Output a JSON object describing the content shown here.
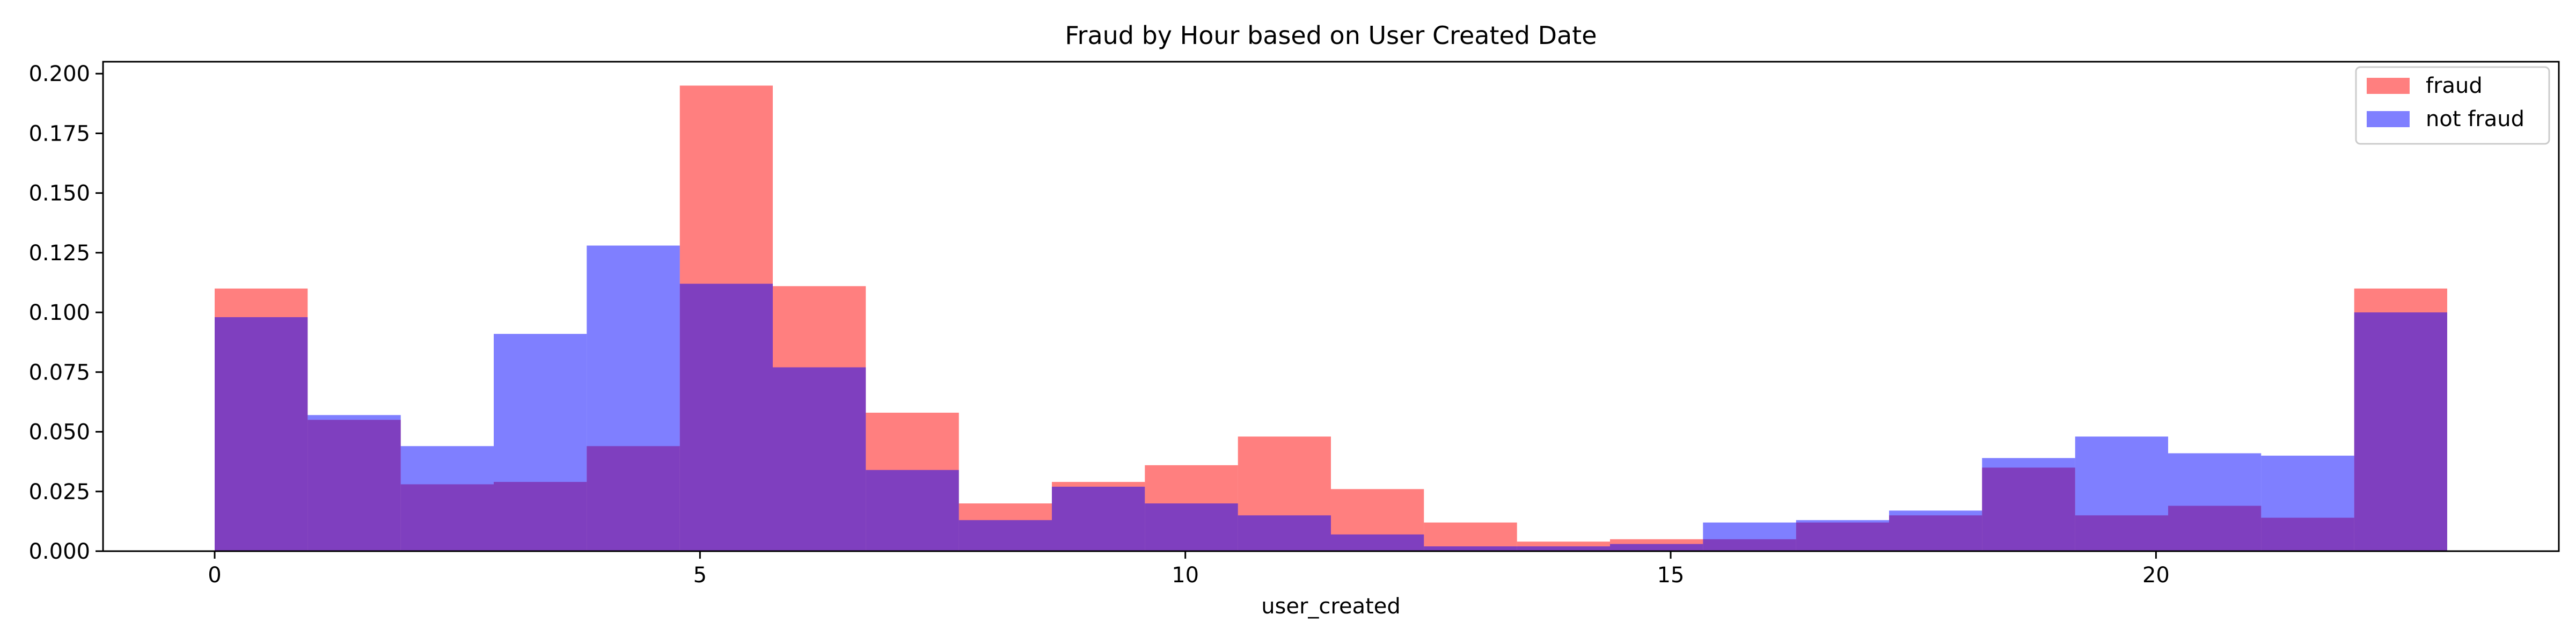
{
  "chart_data": {
    "type": "bar",
    "title": "Fraud by Hour based on User Created Date",
    "xlabel": "user_created",
    "ylabel": "",
    "xlim": [
      -1.15,
      24.15
    ],
    "ylim": [
      0,
      0.205
    ],
    "xticks": [
      0,
      5,
      10,
      15,
      20
    ],
    "xtick_labels": [
      "0",
      "5",
      "10",
      "15",
      "20"
    ],
    "yticks": [
      0,
      0.025,
      0.05,
      0.075,
      0.1,
      0.125,
      0.15,
      0.175,
      0.2
    ],
    "ytick_labels": [
      "0.000",
      "0.025",
      "0.050",
      "0.075",
      "0.100",
      "0.125",
      "0.150",
      "0.175",
      "0.200"
    ],
    "bin_edges": [
      0,
      0.958,
      1.917,
      2.875,
      3.833,
      4.792,
      5.75,
      6.708,
      7.667,
      8.625,
      9.583,
      10.542,
      11.5,
      12.458,
      13.417,
      14.375,
      15.333,
      16.292,
      17.25,
      18.208,
      19.167,
      20.125,
      21.083,
      22.042,
      23.0
    ],
    "series": [
      {
        "name": "fraud",
        "color": "#ff0000",
        "alpha": 0.5,
        "values": [
          0.11,
          0.055,
          0.028,
          0.029,
          0.044,
          0.195,
          0.111,
          0.058,
          0.02,
          0.029,
          0.036,
          0.048,
          0.026,
          0.012,
          0.004,
          0.005,
          0.005,
          0.012,
          0.015,
          0.035,
          0.015,
          0.019,
          0.014,
          0.11
        ]
      },
      {
        "name": "not fraud",
        "color": "#0000ff",
        "alpha": 0.5,
        "values": [
          0.098,
          0.057,
          0.044,
          0.091,
          0.128,
          0.112,
          0.077,
          0.034,
          0.013,
          0.027,
          0.02,
          0.015,
          0.007,
          0.002,
          0.002,
          0.003,
          0.012,
          0.013,
          0.017,
          0.039,
          0.048,
          0.041,
          0.04,
          0.1
        ]
      }
    ],
    "grid": false,
    "legend_position": "top-right"
  }
}
